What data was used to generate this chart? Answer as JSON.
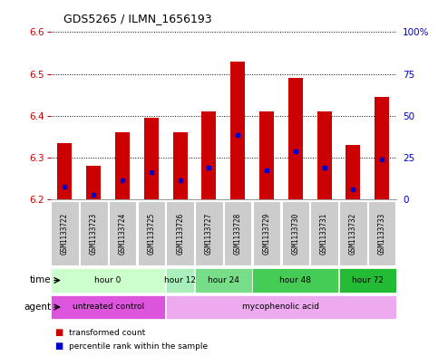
{
  "title": "GDS5265 / ILMN_1656193",
  "samples": [
    "GSM1133722",
    "GSM1133723",
    "GSM1133724",
    "GSM1133725",
    "GSM1133726",
    "GSM1133727",
    "GSM1133728",
    "GSM1133729",
    "GSM1133730",
    "GSM1133731",
    "GSM1133732",
    "GSM1133733"
  ],
  "bar_tops": [
    6.335,
    6.28,
    6.36,
    6.395,
    6.36,
    6.41,
    6.53,
    6.41,
    6.49,
    6.41,
    6.33,
    6.445
  ],
  "blue_markers": [
    6.23,
    6.21,
    6.245,
    6.265,
    6.245,
    6.275,
    6.355,
    6.27,
    6.315,
    6.275,
    6.225,
    6.295
  ],
  "ylim_left": [
    6.2,
    6.6
  ],
  "ylim_right": [
    0,
    100
  ],
  "yticks_left": [
    6.2,
    6.3,
    6.4,
    6.5,
    6.6
  ],
  "yticks_right": [
    0,
    25,
    50,
    75,
    100
  ],
  "bar_color": "#cc0000",
  "blue_color": "#0000cc",
  "bar_bottom": 6.2,
  "time_groups": [
    {
      "label": "hour 0",
      "start": 0,
      "end": 4,
      "color": "#ccffcc"
    },
    {
      "label": "hour 12",
      "start": 4,
      "end": 5,
      "color": "#aaeebb"
    },
    {
      "label": "hour 24",
      "start": 5,
      "end": 7,
      "color": "#77dd88"
    },
    {
      "label": "hour 48",
      "start": 7,
      "end": 10,
      "color": "#44cc55"
    },
    {
      "label": "hour 72",
      "start": 10,
      "end": 12,
      "color": "#22bb33"
    }
  ],
  "agent_groups": [
    {
      "label": "untreated control",
      "start": 0,
      "end": 4,
      "color": "#dd55dd"
    },
    {
      "label": "mycophenolic acid",
      "start": 4,
      "end": 12,
      "color": "#eeaaee"
    }
  ],
  "tick_label_color": "#cc0000",
  "right_axis_color": "#0000cc",
  "background_color": "#ffffff",
  "grid_color": "#000000",
  "sample_bg_color": "#cccccc",
  "legend_items": [
    {
      "color": "#cc0000",
      "label": "transformed count"
    },
    {
      "color": "#0000cc",
      "label": "percentile rank within the sample"
    }
  ]
}
